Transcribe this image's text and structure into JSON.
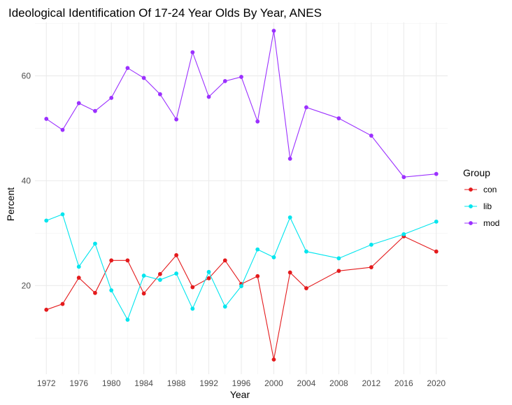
{
  "chart_data": {
    "type": "line",
    "title": "Ideological Identification Of 17-24 Year Olds By Year, ANES",
    "xlabel": "Year",
    "ylabel": "Percent",
    "x": [
      1972,
      1974,
      1976,
      1978,
      1980,
      1982,
      1984,
      1986,
      1988,
      1990,
      1992,
      1994,
      1996,
      1998,
      2000,
      2002,
      2004,
      2008,
      2012,
      2016,
      2020
    ],
    "x_ticks": [
      "1972",
      "1976",
      "1980",
      "1984",
      "1988",
      "1992",
      "1996",
      "2000",
      "2004",
      "2008",
      "2012",
      "2016",
      "2020"
    ],
    "y_ticks": [
      "20",
      "40",
      "60"
    ],
    "xlim": [
      1970.6,
      2021.4
    ],
    "ylim": [
      3.1,
      70.2
    ],
    "grid": true,
    "legend": {
      "title": "Group",
      "position": "right"
    },
    "series": [
      {
        "name": "con",
        "color": "#e41a1c",
        "values": [
          15.4,
          16.5,
          21.5,
          18.6,
          24.8,
          24.8,
          18.5,
          22.2,
          25.8,
          19.7,
          21.4,
          24.8,
          20.3,
          21.8,
          5.9,
          22.5,
          19.5,
          22.8,
          23.5,
          29.4,
          26.5
        ]
      },
      {
        "name": "lib",
        "color": "#00e5ee",
        "values": [
          32.4,
          33.6,
          23.6,
          28.0,
          19.1,
          13.5,
          21.9,
          21.1,
          22.3,
          15.6,
          22.6,
          16.0,
          19.9,
          26.9,
          25.4,
          33.0,
          26.5,
          25.2,
          27.8,
          29.8,
          32.2
        ]
      },
      {
        "name": "mod",
        "color": "#9b30ff",
        "values": [
          51.8,
          49.7,
          54.8,
          53.3,
          55.8,
          61.5,
          59.6,
          56.5,
          51.7,
          64.5,
          56.0,
          59.0,
          59.8,
          51.3,
          68.6,
          44.2,
          54.0,
          51.9,
          48.6,
          40.7,
          41.3
        ]
      }
    ]
  }
}
